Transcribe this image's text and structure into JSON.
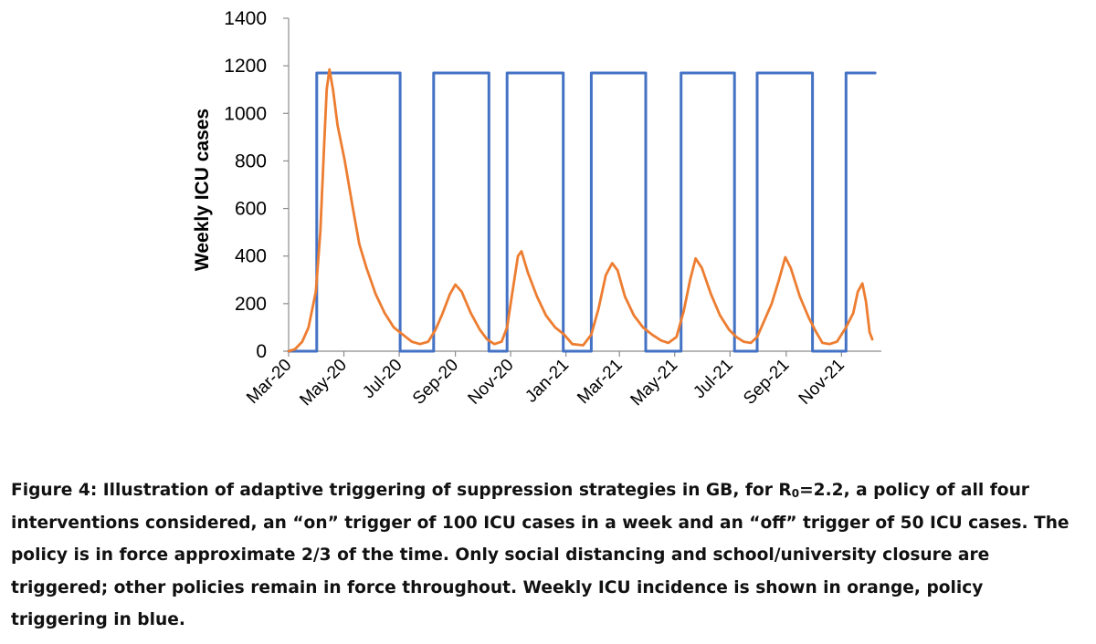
{
  "chart_data": {
    "type": "line",
    "title": "",
    "xlabel": "",
    "ylabel": "Weekly ICU cases",
    "ylim": [
      0,
      1400
    ],
    "yticks": [
      0,
      200,
      400,
      600,
      800,
      1000,
      1200,
      1400
    ],
    "xlim": [
      "2020-03-01",
      "2021-12-15"
    ],
    "xtick_labels": [
      "Mar-20",
      "May-20",
      "Jul-20",
      "Sep-20",
      "Nov-20",
      "Jan-21",
      "Mar-21",
      "May-21",
      "Jul-21",
      "Sep-21",
      "Nov-21"
    ],
    "xtick_dates": [
      "2020-03-01",
      "2020-05-01",
      "2020-07-01",
      "2020-09-01",
      "2020-11-01",
      "2021-01-01",
      "2021-03-01",
      "2021-05-01",
      "2021-07-01",
      "2021-09-01",
      "2021-11-01"
    ],
    "grid": false,
    "legend": "none",
    "series": [
      {
        "color": "#4472C4",
        "points": [
          [
            "2020-03-01",
            0
          ],
          [
            "2020-04-01",
            0
          ],
          [
            "2020-04-01",
            1170
          ],
          [
            "2020-07-02",
            1170
          ],
          [
            "2020-07-02",
            0
          ],
          [
            "2020-08-08",
            0
          ],
          [
            "2020-08-08",
            1170
          ],
          [
            "2020-10-08",
            1170
          ],
          [
            "2020-10-08",
            0
          ],
          [
            "2020-10-28",
            0
          ],
          [
            "2020-10-28",
            1170
          ],
          [
            "2020-12-29",
            1170
          ],
          [
            "2020-12-29",
            0
          ],
          [
            "2021-01-29",
            0
          ],
          [
            "2021-01-29",
            1170
          ],
          [
            "2021-03-30",
            1170
          ],
          [
            "2021-03-30",
            0
          ],
          [
            "2021-05-08",
            0
          ],
          [
            "2021-05-08",
            1170
          ],
          [
            "2021-07-06",
            1170
          ],
          [
            "2021-07-06",
            0
          ],
          [
            "2021-07-31",
            0
          ],
          [
            "2021-07-31",
            1170
          ],
          [
            "2021-09-30",
            1170
          ],
          [
            "2021-09-30",
            0
          ],
          [
            "2021-11-06",
            0
          ],
          [
            "2021-11-06",
            1170
          ],
          [
            "2021-12-08",
            1170
          ]
        ]
      },
      {
        "color": "#ED7D31",
        "points": [
          [
            "2020-03-01",
            0
          ],
          [
            "2020-03-08",
            8
          ],
          [
            "2020-03-16",
            40
          ],
          [
            "2020-03-23",
            100
          ],
          [
            "2020-03-31",
            250
          ],
          [
            "2020-04-05",
            500
          ],
          [
            "2020-04-09",
            850
          ],
          [
            "2020-04-12",
            1100
          ],
          [
            "2020-04-15",
            1185
          ],
          [
            "2020-04-19",
            1100
          ],
          [
            "2020-04-24",
            950
          ],
          [
            "2020-05-02",
            800
          ],
          [
            "2020-05-10",
            620
          ],
          [
            "2020-05-18",
            450
          ],
          [
            "2020-05-26",
            350
          ],
          [
            "2020-06-05",
            240
          ],
          [
            "2020-06-15",
            160
          ],
          [
            "2020-06-25",
            100
          ],
          [
            "2020-07-05",
            70
          ],
          [
            "2020-07-15",
            40
          ],
          [
            "2020-07-24",
            30
          ],
          [
            "2020-08-02",
            40
          ],
          [
            "2020-08-10",
            90
          ],
          [
            "2020-08-18",
            160
          ],
          [
            "2020-08-26",
            240
          ],
          [
            "2020-09-01",
            280
          ],
          [
            "2020-09-08",
            250
          ],
          [
            "2020-09-18",
            160
          ],
          [
            "2020-09-28",
            90
          ],
          [
            "2020-10-06",
            50
          ],
          [
            "2020-10-14",
            30
          ],
          [
            "2020-10-22",
            40
          ],
          [
            "2020-10-28",
            100
          ],
          [
            "2020-11-03",
            250
          ],
          [
            "2020-11-09",
            400
          ],
          [
            "2020-11-13",
            420
          ],
          [
            "2020-11-20",
            330
          ],
          [
            "2020-11-30",
            230
          ],
          [
            "2020-12-10",
            150
          ],
          [
            "2020-12-20",
            100
          ],
          [
            "2020-12-30",
            70
          ],
          [
            "2021-01-08",
            30
          ],
          [
            "2021-01-20",
            25
          ],
          [
            "2021-01-29",
            70
          ],
          [
            "2021-02-06",
            180
          ],
          [
            "2021-02-14",
            320
          ],
          [
            "2021-02-21",
            370
          ],
          [
            "2021-02-27",
            340
          ],
          [
            "2021-03-07",
            230
          ],
          [
            "2021-03-17",
            150
          ],
          [
            "2021-03-27",
            100
          ],
          [
            "2021-04-06",
            70
          ],
          [
            "2021-04-16",
            45
          ],
          [
            "2021-04-24",
            35
          ],
          [
            "2021-05-03",
            60
          ],
          [
            "2021-05-11",
            170
          ],
          [
            "2021-05-18",
            300
          ],
          [
            "2021-05-24",
            390
          ],
          [
            "2021-05-31",
            350
          ],
          [
            "2021-06-10",
            240
          ],
          [
            "2021-06-20",
            150
          ],
          [
            "2021-06-30",
            90
          ],
          [
            "2021-07-08",
            60
          ],
          [
            "2021-07-16",
            40
          ],
          [
            "2021-07-24",
            35
          ],
          [
            "2021-07-31",
            60
          ],
          [
            "2021-08-08",
            130
          ],
          [
            "2021-08-16",
            200
          ],
          [
            "2021-08-24",
            300
          ],
          [
            "2021-08-31",
            395
          ],
          [
            "2021-09-06",
            350
          ],
          [
            "2021-09-16",
            230
          ],
          [
            "2021-09-26",
            140
          ],
          [
            "2021-10-04",
            80
          ],
          [
            "2021-10-11",
            35
          ],
          [
            "2021-10-19",
            30
          ],
          [
            "2021-10-27",
            40
          ],
          [
            "2021-11-06",
            100
          ],
          [
            "2021-11-14",
            160
          ],
          [
            "2021-11-19",
            250
          ],
          [
            "2021-11-24",
            285
          ],
          [
            "2021-11-28",
            210
          ],
          [
            "2021-12-02",
            80
          ],
          [
            "2021-12-05",
            50
          ]
        ]
      }
    ]
  },
  "caption": {
    "lines": [
      [
        "Figure 4: Illustration of adaptive triggering of suppression strategies in GB, for R",
        "0",
        "=2.2, a policy of all four"
      ],
      [
        "interventions considered, an “on” trigger of 100 ICU cases in a week and an “off” trigger of 50 ICU cases.  The"
      ],
      [
        "policy is in force approximate 2/3 of the time. Only social distancing and school/university closure are"
      ],
      [
        "triggered; other policies remain in force throughout. Weekly ICU incidence is shown in orange, policy"
      ],
      [
        "triggering in blue."
      ]
    ]
  }
}
